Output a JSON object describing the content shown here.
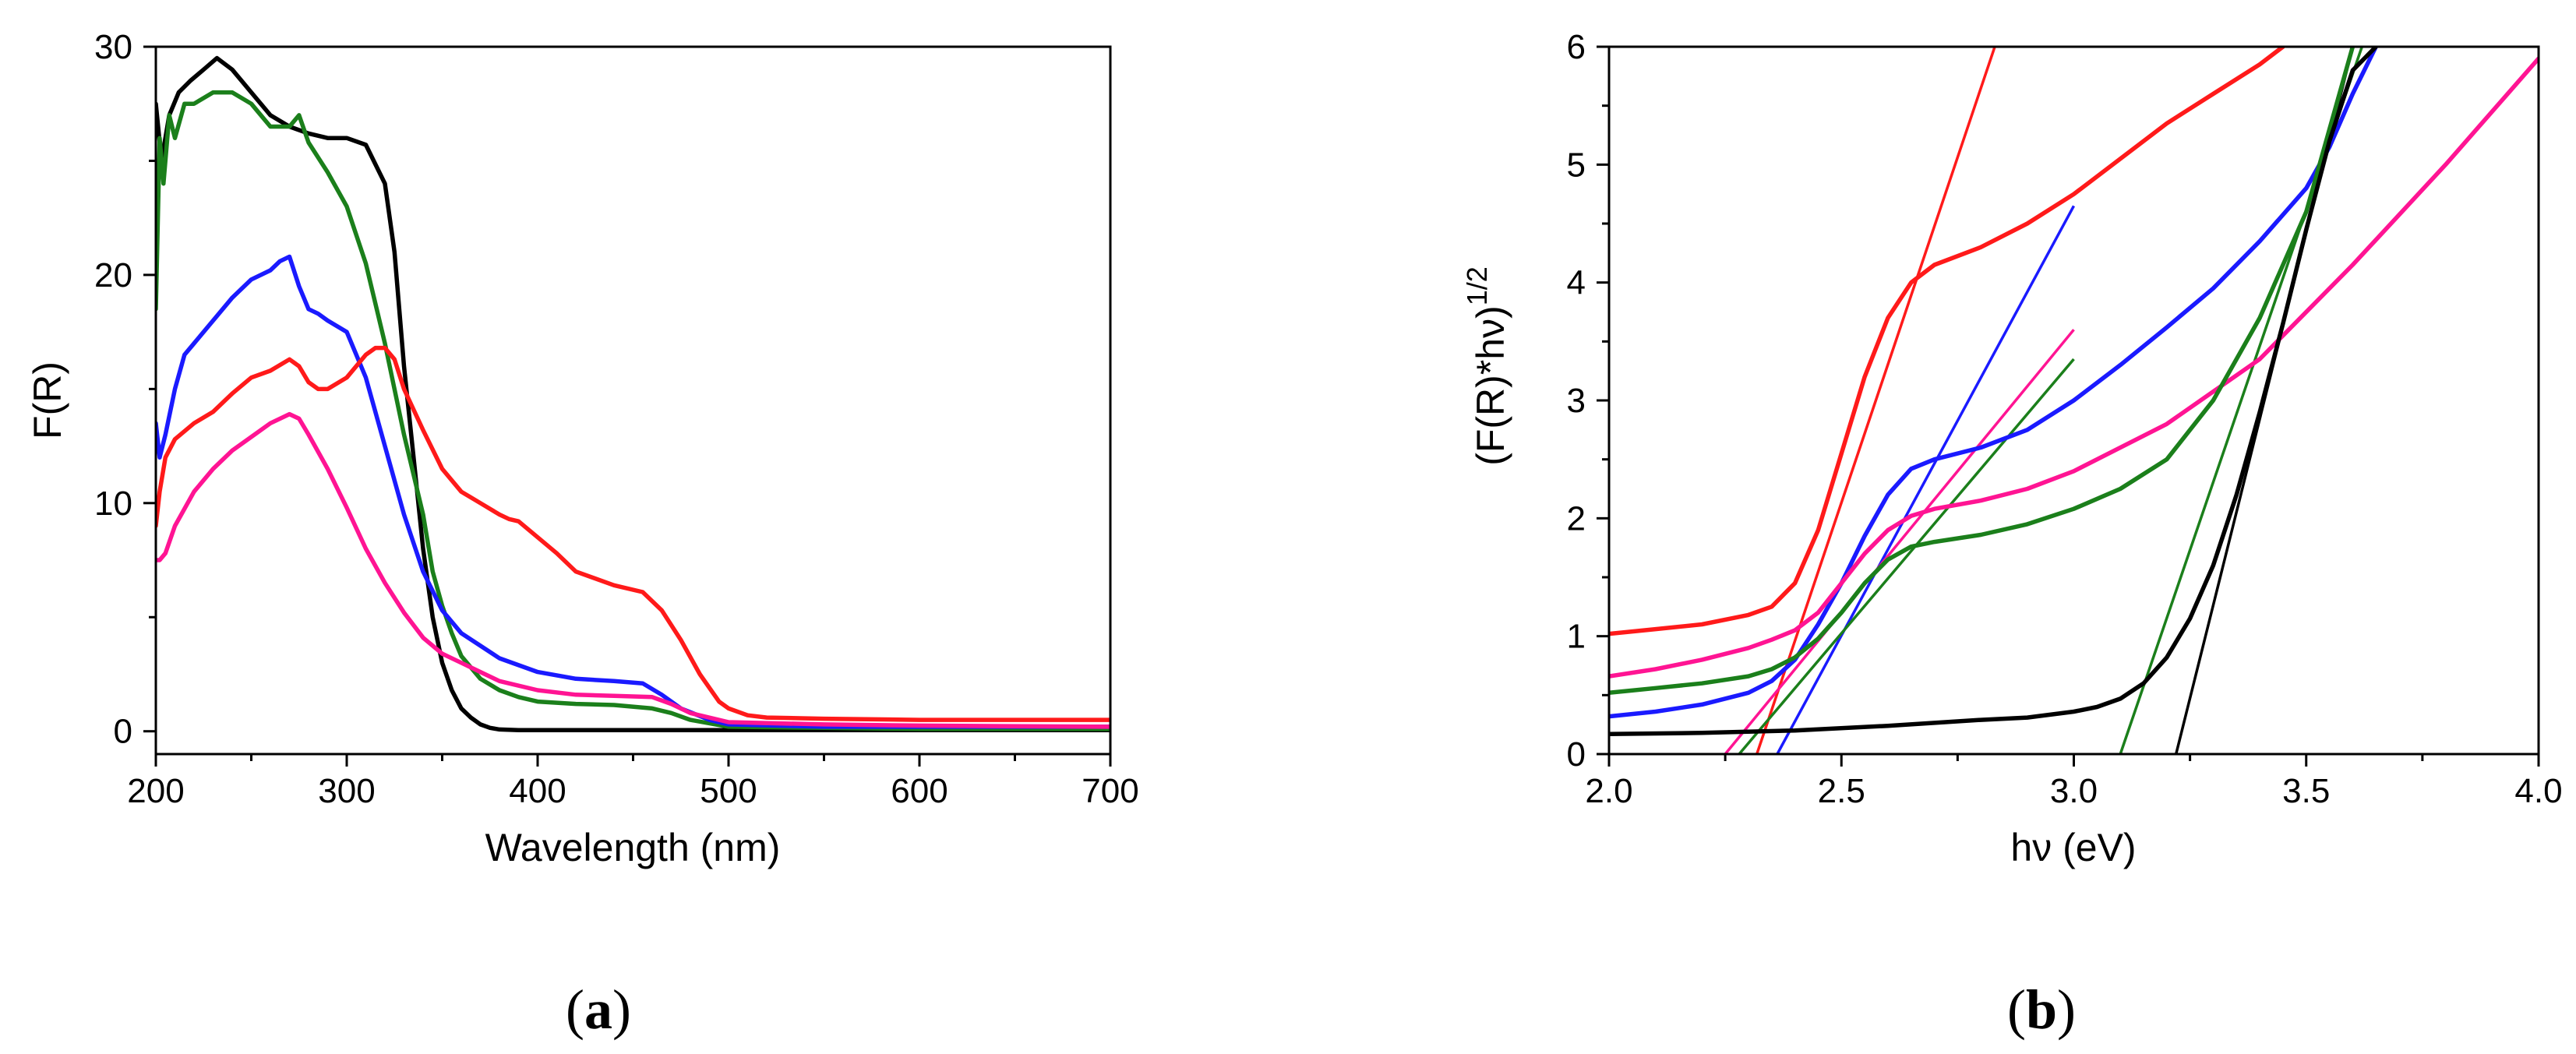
{
  "chart_data": [
    {
      "panel": "a",
      "panel_label": "a",
      "type": "line",
      "title": "",
      "xlabel": "Wavelength (nm)",
      "ylabel": "F(R)",
      "xlim": [
        200,
        700
      ],
      "ylim": [
        -1,
        30
      ],
      "xticks": [
        200,
        300,
        400,
        500,
        600,
        700
      ],
      "yticks": [
        0,
        10,
        20,
        30
      ],
      "grid": false,
      "series": [
        {
          "name": "black",
          "color": "#000000",
          "x": [
            200,
            203,
            207,
            212,
            218,
            225,
            232,
            240,
            250,
            260,
            270,
            280,
            290,
            300,
            310,
            320,
            325,
            330,
            335,
            340,
            345,
            350,
            355,
            360,
            365,
            370,
            375,
            380,
            390,
            400,
            450,
            500,
            550,
            600,
            700
          ],
          "y": [
            27.5,
            25,
            27,
            28,
            28.5,
            29,
            29.5,
            29,
            28,
            27,
            26.5,
            26.2,
            26,
            26,
            25.7,
            24,
            21,
            16,
            12,
            8,
            5,
            3,
            1.8,
            1,
            0.6,
            0.3,
            0.15,
            0.08,
            0.05,
            0.05,
            0.05,
            0.05,
            0.05,
            0.05,
            0.05
          ]
        },
        {
          "name": "green",
          "color": "#1b7f1b",
          "x": [
            200,
            202,
            204,
            207,
            210,
            215,
            220,
            230,
            240,
            250,
            260,
            270,
            275,
            280,
            290,
            300,
            310,
            320,
            330,
            340,
            345,
            350,
            355,
            360,
            370,
            380,
            390,
            400,
            420,
            440,
            460,
            470,
            480,
            500,
            550,
            600,
            700
          ],
          "y": [
            18.5,
            26,
            24,
            27,
            26,
            27.5,
            27.5,
            28,
            28,
            27.5,
            26.5,
            26.5,
            27,
            25.8,
            24.5,
            23,
            20.5,
            17,
            13,
            9.5,
            7,
            5.5,
            4.3,
            3.3,
            2.3,
            1.8,
            1.5,
            1.3,
            1.2,
            1.15,
            1.0,
            0.8,
            0.5,
            0.2,
            0.15,
            0.1,
            0.1
          ]
        },
        {
          "name": "blue",
          "color": "#1a1aff",
          "x": [
            200,
            202,
            205,
            210,
            215,
            220,
            230,
            240,
            250,
            260,
            265,
            270,
            275,
            280,
            285,
            290,
            300,
            310,
            320,
            330,
            340,
            350,
            360,
            380,
            400,
            420,
            440,
            455,
            465,
            475,
            490,
            500,
            550,
            600,
            700
          ],
          "y": [
            13.5,
            12,
            13,
            15,
            16.5,
            17,
            18,
            19,
            19.8,
            20.2,
            20.6,
            20.8,
            19.5,
            18.5,
            18.3,
            18,
            17.5,
            15.5,
            12.5,
            9.5,
            7,
            5.3,
            4.3,
            3.2,
            2.6,
            2.3,
            2.2,
            2.1,
            1.6,
            1.0,
            0.5,
            0.3,
            0.2,
            0.2,
            0.2
          ]
        },
        {
          "name": "red",
          "color": "#ff1a1a",
          "x": [
            200,
            202,
            205,
            210,
            220,
            230,
            240,
            250,
            260,
            270,
            275,
            280,
            285,
            290,
            300,
            310,
            315,
            320,
            325,
            330,
            340,
            350,
            360,
            370,
            380,
            385,
            390,
            400,
            410,
            420,
            440,
            455,
            465,
            475,
            485,
            495,
            500,
            510,
            520,
            550,
            600,
            700
          ],
          "y": [
            9,
            10.5,
            12,
            12.8,
            13.5,
            14,
            14.8,
            15.5,
            15.8,
            16.3,
            16,
            15.3,
            15,
            15,
            15.5,
            16.5,
            16.8,
            16.8,
            16.3,
            15,
            13.2,
            11.5,
            10.5,
            10,
            9.5,
            9.3,
            9.2,
            8.5,
            7.8,
            7,
            6.4,
            6.1,
            5.3,
            4,
            2.5,
            1.3,
            1,
            0.7,
            0.6,
            0.55,
            0.5,
            0.5
          ]
        },
        {
          "name": "pink",
          "color": "#ff1493",
          "x": [
            200,
            202,
            205,
            210,
            220,
            230,
            240,
            250,
            260,
            270,
            275,
            280,
            290,
            300,
            310,
            320,
            330,
            340,
            350,
            360,
            370,
            380,
            400,
            420,
            440,
            460,
            470,
            480,
            500,
            550,
            600,
            700
          ],
          "y": [
            7.5,
            7.5,
            7.8,
            9,
            10.5,
            11.5,
            12.3,
            12.9,
            13.5,
            13.9,
            13.7,
            13,
            11.5,
            9.8,
            8,
            6.5,
            5.2,
            4.1,
            3.4,
            3,
            2.6,
            2.2,
            1.8,
            1.6,
            1.55,
            1.5,
            1.2,
            0.8,
            0.4,
            0.3,
            0.25,
            0.2
          ]
        }
      ]
    },
    {
      "panel": "b",
      "panel_label": "b",
      "type": "line",
      "title": "",
      "xlabel": "hν (eV)",
      "ylabel_main": "(F(R)*hν)",
      "ylabel_exponent": "1/2",
      "xlim": [
        2.0,
        4.0
      ],
      "ylim": [
        0,
        6
      ],
      "xticks": [
        2.0,
        2.5,
        3.0,
        3.5,
        4.0
      ],
      "xtick_labels": [
        "2.0",
        "2.5",
        "3.0",
        "3.5",
        "4.0"
      ],
      "yticks": [
        0,
        1,
        2,
        3,
        4,
        5,
        6
      ],
      "grid": false,
      "series": [
        {
          "name": "red",
          "color": "#ff1a1a",
          "x": [
            2.0,
            2.1,
            2.2,
            2.3,
            2.35,
            2.4,
            2.45,
            2.5,
            2.55,
            2.6,
            2.65,
            2.7,
            2.8,
            2.9,
            3.0,
            3.1,
            3.2,
            3.3,
            3.4,
            3.45
          ],
          "y": [
            1.02,
            1.06,
            1.1,
            1.18,
            1.25,
            1.45,
            1.9,
            2.55,
            3.2,
            3.7,
            4.0,
            4.15,
            4.3,
            4.5,
            4.75,
            5.05,
            5.35,
            5.6,
            5.85,
            6.0
          ]
        },
        {
          "name": "blue",
          "color": "#1a1aff",
          "x": [
            2.0,
            2.1,
            2.2,
            2.3,
            2.35,
            2.4,
            2.45,
            2.5,
            2.55,
            2.6,
            2.65,
            2.7,
            2.8,
            2.9,
            3.0,
            3.1,
            3.2,
            3.3,
            3.4,
            3.5,
            3.55,
            3.6,
            3.65
          ],
          "y": [
            0.32,
            0.36,
            0.42,
            0.52,
            0.62,
            0.8,
            1.1,
            1.45,
            1.85,
            2.2,
            2.42,
            2.5,
            2.6,
            2.75,
            3.0,
            3.3,
            3.62,
            3.95,
            4.35,
            4.8,
            5.15,
            5.6,
            6.0
          ]
        },
        {
          "name": "pink",
          "color": "#ff1493",
          "x": [
            2.0,
            2.1,
            2.2,
            2.3,
            2.35,
            2.4,
            2.45,
            2.5,
            2.55,
            2.6,
            2.65,
            2.7,
            2.8,
            2.9,
            3.0,
            3.2,
            3.4,
            3.6,
            3.8,
            4.0
          ],
          "y": [
            0.66,
            0.72,
            0.8,
            0.9,
            0.97,
            1.05,
            1.2,
            1.45,
            1.7,
            1.9,
            2.02,
            2.08,
            2.15,
            2.25,
            2.4,
            2.8,
            3.35,
            4.15,
            5.0,
            5.9
          ]
        },
        {
          "name": "green",
          "color": "#1b7f1b",
          "x": [
            2.0,
            2.1,
            2.2,
            2.3,
            2.35,
            2.4,
            2.45,
            2.5,
            2.55,
            2.6,
            2.65,
            2.7,
            2.8,
            2.9,
            3.0,
            3.1,
            3.2,
            3.3,
            3.4,
            3.5,
            3.55,
            3.6
          ],
          "y": [
            0.52,
            0.56,
            0.6,
            0.66,
            0.72,
            0.82,
            0.98,
            1.2,
            1.45,
            1.65,
            1.76,
            1.8,
            1.86,
            1.95,
            2.08,
            2.25,
            2.5,
            3.0,
            3.7,
            4.6,
            5.3,
            6.0
          ]
        },
        {
          "name": "black",
          "color": "#000000",
          "x": [
            2.0,
            2.2,
            2.4,
            2.6,
            2.8,
            2.9,
            3.0,
            3.05,
            3.1,
            3.15,
            3.2,
            3.25,
            3.3,
            3.35,
            3.4,
            3.45,
            3.5,
            3.55,
            3.6,
            3.65
          ],
          "y": [
            0.17,
            0.18,
            0.2,
            0.24,
            0.29,
            0.31,
            0.36,
            0.4,
            0.47,
            0.6,
            0.82,
            1.15,
            1.6,
            2.2,
            2.9,
            3.65,
            4.45,
            5.2,
            5.8,
            6.0
          ]
        }
      ],
      "fit_lines": [
        {
          "name": "red-fit",
          "color": "#ff1a1a",
          "x": [
            2.318,
            2.83
          ],
          "y": [
            0,
            6.0
          ]
        },
        {
          "name": "blue-fit",
          "color": "#1a1aff",
          "x": [
            2.362,
            3.0
          ],
          "y": [
            0,
            4.65
          ]
        },
        {
          "name": "pink-fit",
          "color": "#ff1493",
          "x": [
            2.25,
            3.0
          ],
          "y": [
            0,
            3.6
          ]
        },
        {
          "name": "green-fit-1",
          "color": "#1b7f1b",
          "x": [
            2.28,
            3.0
          ],
          "y": [
            0,
            3.35
          ]
        },
        {
          "name": "green-fit-2",
          "color": "#1b7f1b",
          "x": [
            3.1,
            3.62
          ],
          "y": [
            0,
            6.0
          ]
        },
        {
          "name": "black-fit",
          "color": "#000000",
          "x": [
            3.22,
            3.6
          ],
          "y": [
            0,
            6.0
          ]
        }
      ]
    }
  ]
}
